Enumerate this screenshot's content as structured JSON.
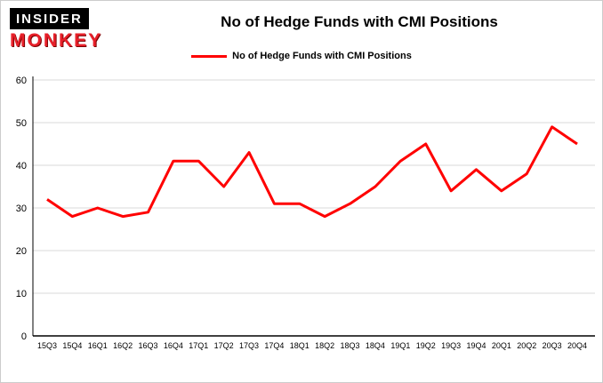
{
  "brand": {
    "line1": "INSIDER",
    "line2": "MONKEY"
  },
  "header": {
    "title": "No of Hedge Funds with CMI Positions"
  },
  "legend": {
    "label": "No of Hedge Funds with CMI Positions",
    "color": "#ff0000"
  },
  "chart_data": {
    "type": "line",
    "title": "No of Hedge Funds with CMI Positions",
    "categories": [
      "15Q3",
      "15Q4",
      "16Q1",
      "16Q2",
      "16Q3",
      "16Q4",
      "17Q1",
      "17Q2",
      "17Q3",
      "17Q4",
      "18Q1",
      "18Q2",
      "18Q3",
      "18Q4",
      "19Q1",
      "19Q2",
      "19Q3",
      "19Q4",
      "20Q1",
      "20Q2",
      "20Q3",
      "20Q4"
    ],
    "series": [
      {
        "name": "No of Hedge Funds with CMI Positions",
        "color": "#ff0000",
        "values": [
          32,
          28,
          30,
          28,
          29,
          41,
          41,
          35,
          43,
          31,
          31,
          28,
          31,
          35,
          41,
          45,
          34,
          39,
          34,
          38,
          49,
          45
        ]
      }
    ],
    "xlabel": "",
    "ylabel": "",
    "ylim": [
      0,
      60
    ],
    "yticks": [
      0,
      10,
      20,
      30,
      40,
      50,
      60
    ],
    "grid": true,
    "grid_color": "#d8d8d8",
    "legend_position": "top"
  }
}
